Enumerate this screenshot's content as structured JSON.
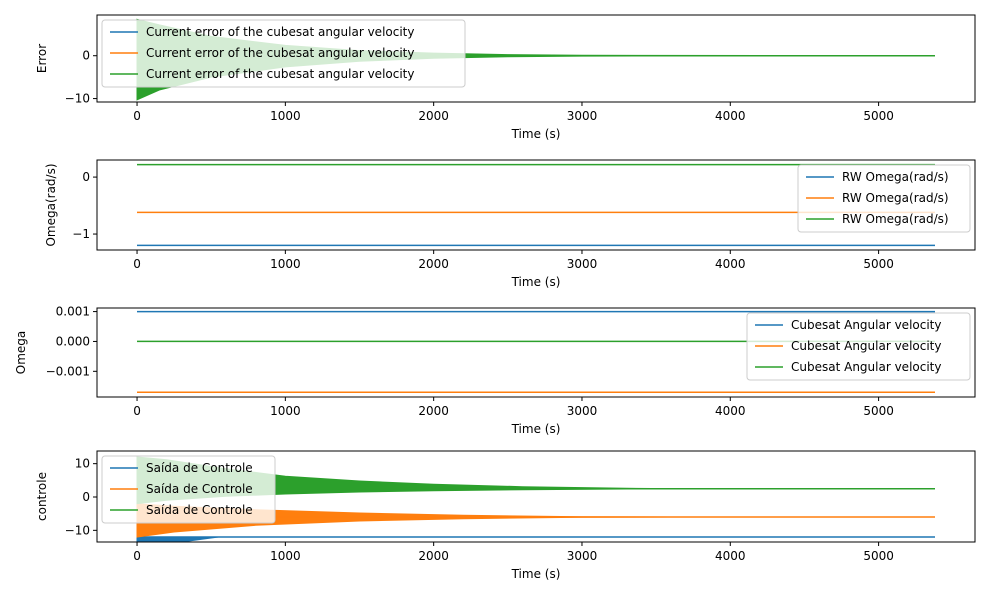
{
  "chart_data": [
    {
      "type": "line",
      "xlabel": "Time (s)",
      "ylabel": "Error",
      "xlim": [
        -270,
        5650
      ],
      "ylim": [
        -10.8,
        9.5
      ],
      "xticks": [
        0,
        1000,
        2000,
        3000,
        4000,
        5000
      ],
      "yticks": [
        -10,
        0
      ],
      "ytick_labels": [
        "−10",
        "0"
      ],
      "legend_position": "upper left",
      "series": [
        {
          "name": "Current error of the cubesat angular velocity",
          "color": "#1f77b4",
          "points": [
            [
              0,
              0
            ],
            [
              5380,
              0
            ]
          ]
        },
        {
          "name": "Current error of the cubesat angular velocity",
          "color": "#ff7f0e",
          "points": [
            [
              0,
              0
            ],
            [
              5380,
              0
            ]
          ]
        },
        {
          "name": "Current error of the cubesat angular velocity",
          "color": "#2ca02c",
          "points": [
            [
              0,
              0
            ],
            [
              5380,
              0
            ]
          ],
          "envelope": [
            [
              0,
              8.5,
              -10.3
            ],
            [
              150,
              7.2,
              -8.0
            ],
            [
              500,
              4.5,
              -5.0
            ],
            [
              1000,
              2.4,
              -2.6
            ],
            [
              1500,
              1.2,
              -1.3
            ],
            [
              2000,
              0.6,
              -0.6
            ],
            [
              2500,
              0.25,
              -0.25
            ],
            [
              3000,
              0.1,
              -0.1
            ],
            [
              5380,
              0,
              0
            ]
          ]
        }
      ]
    },
    {
      "type": "line",
      "xlabel": "Time (s)",
      "ylabel": "Omega(rad/s)",
      "xlim": [
        -270,
        5650
      ],
      "ylim": [
        -1.28,
        0.3
      ],
      "xticks": [
        0,
        1000,
        2000,
        3000,
        4000,
        5000
      ],
      "yticks": [
        -1,
        0
      ],
      "ytick_labels": [
        "−1",
        "0"
      ],
      "legend_position": "upper right",
      "series": [
        {
          "name": "RW Omega(rad/s)",
          "color": "#1f77b4",
          "points": [
            [
              0,
              -1.2
            ],
            [
              5380,
              -1.2
            ]
          ]
        },
        {
          "name": "RW Omega(rad/s)",
          "color": "#ff7f0e",
          "points": [
            [
              0,
              -0.62
            ],
            [
              5380,
              -0.62
            ]
          ]
        },
        {
          "name": "RW Omega(rad/s)",
          "color": "#2ca02c",
          "points": [
            [
              0,
              0.22
            ],
            [
              5380,
              0.22
            ]
          ]
        }
      ]
    },
    {
      "type": "line",
      "xlabel": "Time (s)",
      "ylabel": "Omega",
      "xlim": [
        -270,
        5650
      ],
      "ylim": [
        -0.00186,
        0.00112
      ],
      "xticks": [
        0,
        1000,
        2000,
        3000,
        4000,
        5000
      ],
      "yticks": [
        -0.001,
        0.0,
        0.001
      ],
      "ytick_labels": [
        "−0.001",
        "0.000",
        "0.001"
      ],
      "legend_position": "upper right",
      "series": [
        {
          "name": "Cubesat Angular velocity",
          "color": "#1f77b4",
          "points": [
            [
              0,
              0.001
            ],
            [
              5380,
              0.001
            ]
          ]
        },
        {
          "name": "Cubesat Angular velocity",
          "color": "#ff7f0e",
          "points": [
            [
              0,
              -0.0017
            ],
            [
              5380,
              -0.0017
            ]
          ]
        },
        {
          "name": "Cubesat Angular velocity",
          "color": "#2ca02c",
          "points": [
            [
              0,
              0.0
            ],
            [
              5380,
              0.0
            ]
          ]
        }
      ]
    },
    {
      "type": "line",
      "xlabel": "Time (s)",
      "ylabel": "controle",
      "xlim": [
        -270,
        5650
      ],
      "ylim": [
        -13.5,
        13.8
      ],
      "xticks": [
        0,
        1000,
        2000,
        3000,
        4000,
        5000
      ],
      "yticks": [
        -10,
        0,
        10
      ],
      "ytick_labels": [
        "−10",
        "0",
        "10"
      ],
      "legend_position": "upper left",
      "series": [
        {
          "name": "Saída de Controle",
          "color": "#1f77b4",
          "points": [
            [
              0,
              -12
            ],
            [
              5380,
              -12
            ]
          ],
          "envelope": [
            [
              0,
              -12,
              -14
            ],
            [
              300,
              -12,
              -13.5
            ],
            [
              550,
              -12,
              -12
            ],
            [
              5380,
              -12,
              -12
            ]
          ]
        },
        {
          "name": "Saída de Controle",
          "color": "#ff7f0e",
          "points": [
            [
              0,
              -6
            ],
            [
              5380,
              -6
            ]
          ],
          "envelope": [
            [
              0,
              -2,
              -12
            ],
            [
              250,
              -2.8,
              -10.5
            ],
            [
              800,
              -3.8,
              -8.5
            ],
            [
              1500,
              -4.8,
              -7.2
            ],
            [
              2200,
              -5.5,
              -6.5
            ],
            [
              3000,
              -5.9,
              -6.1
            ],
            [
              3600,
              -6,
              -6
            ],
            [
              5380,
              -6,
              -6
            ]
          ]
        },
        {
          "name": "Saída de Controle",
          "color": "#2ca02c",
          "points": [
            [
              0,
              2.5
            ],
            [
              5380,
              2.5
            ]
          ],
          "envelope": [
            [
              0,
              12,
              -2
            ],
            [
              200,
              11.2,
              -1.0
            ],
            [
              600,
              8.5,
              0.2
            ],
            [
              1000,
              6.2,
              0.9
            ],
            [
              1500,
              4.8,
              1.5
            ],
            [
              2000,
              3.8,
              1.9
            ],
            [
              2600,
              3.1,
              2.2
            ],
            [
              3300,
              2.6,
              2.4
            ],
            [
              3700,
              2.5,
              2.5
            ],
            [
              5380,
              2.5,
              2.5
            ]
          ]
        }
      ]
    }
  ]
}
